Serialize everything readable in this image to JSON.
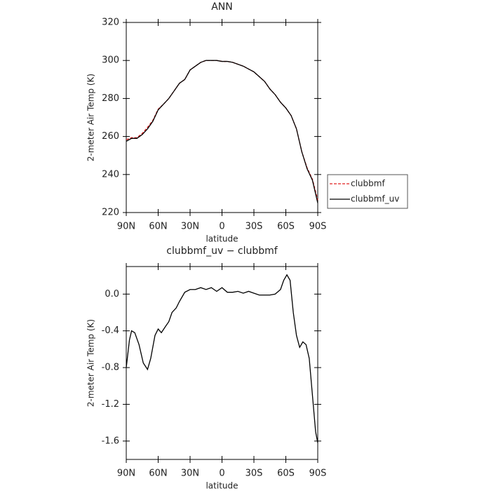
{
  "chart_data": [
    {
      "type": "line",
      "title": "ANN",
      "xlabel": "latitude",
      "ylabel": "2-meter Air Temp (K)",
      "x": [
        90,
        85,
        80,
        75,
        70,
        65,
        60,
        55,
        50,
        45,
        40,
        35,
        30,
        25,
        20,
        15,
        10,
        5,
        0,
        -5,
        -10,
        -15,
        -20,
        -25,
        -30,
        -35,
        -40,
        -45,
        -50,
        -55,
        -60,
        -65,
        -70,
        -75,
        -80,
        -85,
        -90
      ],
      "series": [
        {
          "name": "clubbmf",
          "color": "#e02020",
          "dashed": true,
          "values": [
            258.3,
            259.4,
            259.4,
            261.6,
            264.8,
            268.5,
            274.4,
            277,
            280,
            284,
            288,
            290,
            295,
            297,
            299,
            300,
            300,
            300,
            299.5,
            299.5,
            299,
            298,
            297,
            295.5,
            294,
            291.5,
            289,
            285,
            282,
            278,
            275,
            271,
            264,
            252,
            243.5,
            237.5,
            226.5
          ]
        },
        {
          "name": "clubbmf_uv",
          "color": "#000000",
          "dashed": false,
          "values": [
            257.5,
            259,
            259,
            261,
            264,
            268,
            274,
            277,
            280,
            284,
            288,
            290,
            295,
            297,
            299,
            300,
            300,
            300,
            299.5,
            299.5,
            299,
            298,
            297,
            295.5,
            294,
            291.5,
            289,
            285,
            282,
            278,
            275,
            271,
            264,
            252,
            243,
            237,
            225
          ]
        }
      ],
      "xlim": [
        90,
        -90
      ],
      "xticks": [
        {
          "value": 90,
          "label": "90N"
        },
        {
          "value": 60,
          "label": "60N"
        },
        {
          "value": 30,
          "label": "30N"
        },
        0,
        {
          "value": -30,
          "label": "30S"
        },
        {
          "value": -60,
          "label": "60S"
        },
        {
          "value": -90,
          "label": "90S"
        }
      ],
      "ylim": [
        220,
        320
      ],
      "yticks": [
        220,
        240,
        260,
        280,
        300,
        320
      ],
      "legend": "outside-right-bottom"
    },
    {
      "type": "line",
      "title": "clubbmf_uv − clubbmf",
      "xlabel": "latitude",
      "ylabel": "2-meter Air Temp (K)",
      "x": [
        90,
        87,
        85,
        82,
        78,
        74,
        70,
        67,
        63,
        60,
        57,
        53,
        50,
        47,
        43,
        40,
        35,
        30,
        25,
        20,
        15,
        10,
        5,
        0,
        -5,
        -10,
        -15,
        -20,
        -25,
        -30,
        -35,
        -40,
        -45,
        -50,
        -55,
        -58,
        -61,
        -64,
        -67,
        -70,
        -73,
        -76,
        -79,
        -82,
        -85,
        -88,
        -90
      ],
      "series": [
        {
          "name": "clubbmf_uv − clubbmf",
          "color": "#000000",
          "dashed": false,
          "values": [
            -0.8,
            -0.5,
            -0.4,
            -0.42,
            -0.55,
            -0.75,
            -0.82,
            -0.7,
            -0.45,
            -0.38,
            -0.42,
            -0.35,
            -0.3,
            -0.2,
            -0.15,
            -0.08,
            0.02,
            0.05,
            0.05,
            0.07,
            0.05,
            0.07,
            0.03,
            0.07,
            0.02,
            0.02,
            0.03,
            0.01,
            0.03,
            0.01,
            -0.01,
            -0.01,
            -0.01,
            0,
            0.05,
            0.15,
            0.21,
            0.15,
            -0.2,
            -0.45,
            -0.58,
            -0.52,
            -0.55,
            -0.7,
            -1.1,
            -1.5,
            -1.62
          ]
        }
      ],
      "xlim": [
        90,
        -90
      ],
      "xticks": [
        {
          "value": 90,
          "label": "90N"
        },
        {
          "value": 60,
          "label": "60N"
        },
        {
          "value": 30,
          "label": "30N"
        },
        0,
        {
          "value": -30,
          "label": "30S"
        },
        {
          "value": -60,
          "label": "60S"
        },
        {
          "value": -90,
          "label": "90S"
        }
      ],
      "ylim": [
        -1.8,
        0.3
      ],
      "yticks": [
        -1.6,
        -1.2,
        -0.8,
        -0.4,
        {
          "value": 0,
          "label": "0.0"
        }
      ]
    }
  ]
}
